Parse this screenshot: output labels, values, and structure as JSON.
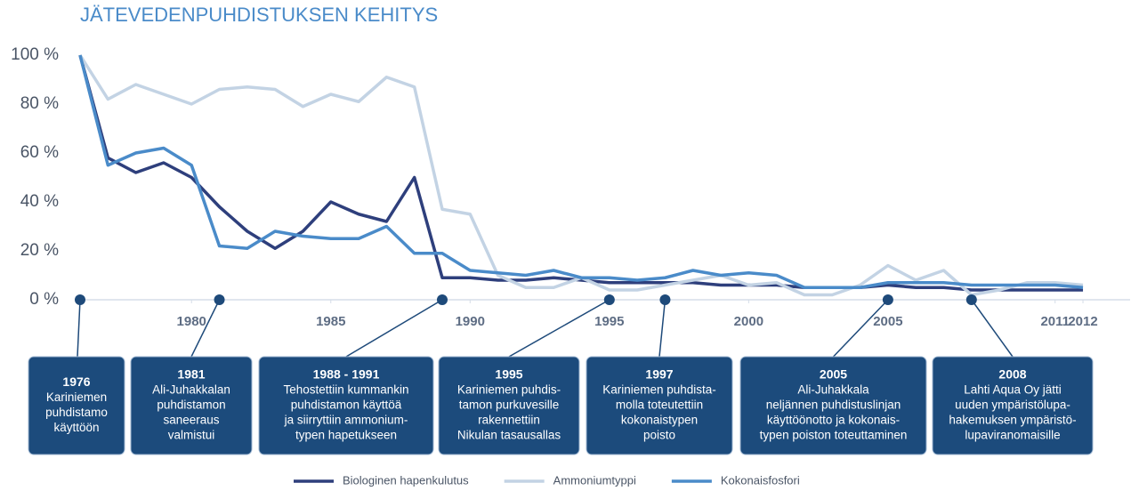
{
  "chart_data": {
    "type": "line",
    "title": "JÄTEVEDENPUHDISTUKSEN KEHITYS",
    "x": [
      1976,
      1977,
      1978,
      1979,
      1980,
      1981,
      1982,
      1983,
      1984,
      1985,
      1986,
      1987,
      1988,
      1989,
      1990,
      1991,
      1992,
      1993,
      1994,
      1995,
      1996,
      1997,
      1998,
      1999,
      2000,
      2001,
      2002,
      2003,
      2004,
      2005,
      2006,
      2007,
      2008,
      2009,
      2010,
      2011,
      2012
    ],
    "xlim": [
      1976,
      2013.5
    ],
    "xticks": [
      1980,
      1985,
      1990,
      1995,
      2000,
      2005,
      2011,
      2012
    ],
    "ylim": [
      0,
      100
    ],
    "yticks": [
      {
        "value": 0,
        "label": "0 %"
      },
      {
        "value": 20,
        "label": "20 %"
      },
      {
        "value": 40,
        "label": "40 %"
      },
      {
        "value": 60,
        "label": "60 %"
      },
      {
        "value": 80,
        "label": "80 %"
      },
      {
        "value": 100,
        "label": "100 %"
      }
    ],
    "grid": false,
    "legend": "bottom",
    "series": [
      {
        "name": "Biologinen hapenkulutus",
        "color": "#2e3f7c",
        "values": [
          100,
          58,
          52,
          56,
          50,
          38,
          28,
          21,
          28,
          40,
          35,
          32,
          50,
          9,
          9,
          8,
          8,
          9,
          8,
          7,
          7,
          7,
          7,
          6,
          6,
          6,
          5,
          5,
          5,
          6,
          5,
          5,
          4,
          4,
          4,
          4,
          4
        ]
      },
      {
        "name": "Ammoniumtyppi",
        "color": "#c3d3e4",
        "values": [
          100,
          82,
          88,
          84,
          80,
          86,
          87,
          86,
          79,
          84,
          81,
          91,
          87,
          37,
          35,
          10,
          5,
          5,
          9,
          4,
          4,
          6,
          8,
          10,
          6,
          7,
          2,
          2,
          6,
          14,
          8,
          12,
          2,
          4,
          7,
          7,
          6
        ]
      },
      {
        "name": "Kokonaisfosfori",
        "color": "#4a8bc9",
        "values": [
          100,
          55,
          60,
          62,
          55,
          22,
          21,
          28,
          26,
          25,
          25,
          30,
          19,
          19,
          12,
          11,
          10,
          12,
          9,
          9,
          8,
          9,
          12,
          10,
          11,
          10,
          5,
          5,
          5,
          7,
          7,
          7,
          6,
          6,
          6,
          6,
          5
        ]
      }
    ],
    "events": [
      {
        "x": 1976,
        "title": "1976",
        "lines": [
          "Kariniemen",
          "puhdistamo",
          "käyttöön"
        ]
      },
      {
        "x": 1981,
        "title": "1981",
        "lines": [
          "Ali-Juhakkalan",
          "puhdistamon",
          "saneeraus",
          "valmistui"
        ]
      },
      {
        "x": 1989,
        "title": "1988 - 1991",
        "lines": [
          "Tehostettiin kummankin",
          "puhdistamon käyttöä",
          "ja siirryttiin ammonium-",
          "typen hapetukseen"
        ]
      },
      {
        "x": 1995,
        "title": "1995",
        "lines": [
          "Kariniemen puhdis-",
          "tamon purkuvesille",
          "rakennettiin",
          "Nikulan tasausallas"
        ]
      },
      {
        "x": 1997,
        "title": "1997",
        "lines": [
          "Kariniemen puhdista-",
          "molla toteutettiin",
          "kokonaistypen",
          "poisto"
        ]
      },
      {
        "x": 2005,
        "title": "2005",
        "lines": [
          "Ali-Juhakkala",
          "neljännen puhdistuslinjan",
          "käyttöönotto ja kokonais-",
          "typen poiston toteuttaminen"
        ]
      },
      {
        "x": 2008,
        "title": "2008",
        "lines": [
          "Lahti Aqua Oy jätti",
          "uuden ympäristölupa-",
          "hakemuksen ympäristö-",
          "lupaviranomaisille"
        ]
      }
    ]
  }
}
